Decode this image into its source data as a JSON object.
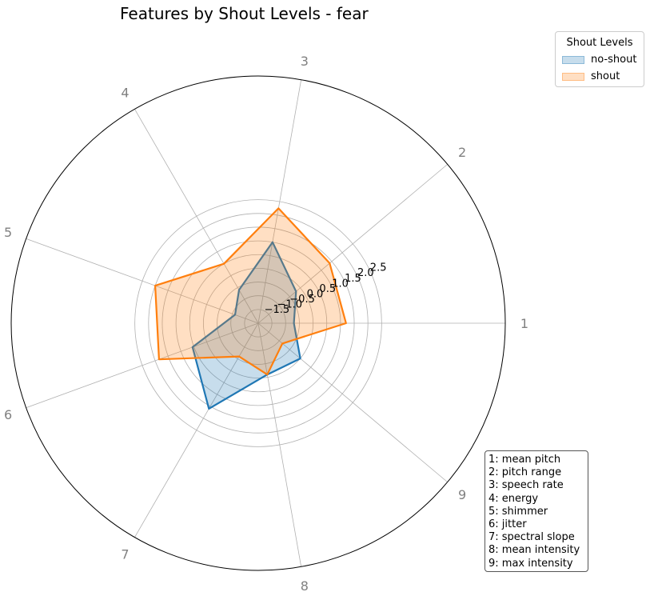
{
  "chart_data": {
    "type": "radar",
    "title": "Features by Shout Levels - fear",
    "categories": [
      "1",
      "2",
      "3",
      "4",
      "5",
      "6",
      "7",
      "8",
      "9"
    ],
    "radial_ticks": [
      "−1.5",
      "−1.0",
      "−0.5",
      "0.0",
      "0.5",
      "1.0",
      "1.5",
      "2.0",
      "2.5"
    ],
    "radial_tick_values": [
      -1.5,
      -1.0,
      -0.5,
      0.0,
      0.5,
      1.0,
      1.5,
      2.0,
      2.5
    ],
    "rlim": [
      -2.0,
      2.5
    ],
    "grid": true,
    "legend": {
      "title": "Shout Levels",
      "placement": "upper-right-outside"
    },
    "series": [
      {
        "name": "no-shout",
        "values": [
          -0.7,
          -0.2,
          1.0,
          -0.6,
          -1.1,
          0.55,
          1.6,
          -0.1,
          0.0
        ],
        "line_color": "#1f77b4",
        "fill_color": "#1f77b4"
      },
      {
        "name": "shout",
        "values": [
          1.2,
          1.4,
          2.25,
          0.5,
          2.0,
          1.85,
          -0.6,
          -0.1,
          -0.85
        ],
        "line_color": "#ff7f0e",
        "fill_color": "#ff7f0e"
      }
    ],
    "feature_key": [
      "1: mean pitch",
      "2: pitch range",
      "3: speech rate",
      "4: energy",
      "5: shimmer",
      "6: jitter",
      "7: spectral slope",
      "8: mean intensity",
      "9: max intensity"
    ]
  }
}
